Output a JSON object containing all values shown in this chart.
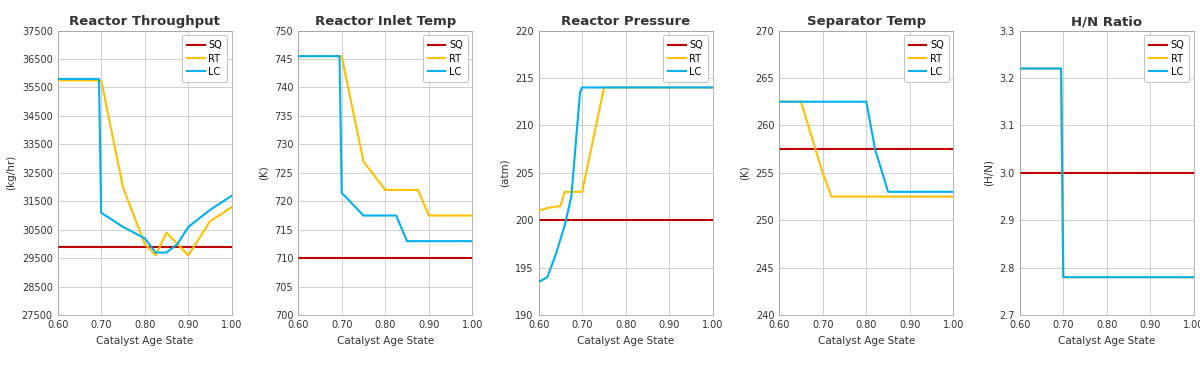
{
  "panels": [
    {
      "title": "Reactor Throughput",
      "ylabel": "(kg/hr)",
      "xlabel": "Catalyst Age State",
      "ylim": [
        27500,
        37500
      ],
      "yticks": [
        27500,
        28500,
        29500,
        30500,
        31500,
        32500,
        33500,
        34500,
        35500,
        36500,
        37500
      ],
      "xlim": [
        0.6,
        1.0
      ],
      "xticks": [
        0.6,
        0.7,
        0.8,
        0.9,
        1.0
      ],
      "SQ": {
        "x": [
          0.6,
          1.0
        ],
        "y": [
          29900,
          29900
        ]
      },
      "RT": {
        "x": [
          0.6,
          0.65,
          0.7,
          0.75,
          0.8,
          0.825,
          0.85,
          0.875,
          0.9,
          0.95,
          1.0
        ],
        "y": [
          35750,
          35750,
          35750,
          32000,
          30000,
          29600,
          30400,
          30000,
          29600,
          30800,
          31300
        ]
      },
      "LC": {
        "x": [
          0.6,
          0.65,
          0.695,
          0.7,
          0.75,
          0.8,
          0.825,
          0.85,
          0.875,
          0.9,
          0.95,
          1.0
        ],
        "y": [
          35800,
          35800,
          35800,
          31100,
          30600,
          30200,
          29700,
          29700,
          30000,
          30600,
          31200,
          31700
        ]
      }
    },
    {
      "title": "Reactor Inlet Temp",
      "ylabel": "(K)",
      "xlabel": "Catalyst Age State",
      "ylim": [
        700,
        750
      ],
      "yticks": [
        700,
        705,
        710,
        715,
        720,
        725,
        730,
        735,
        740,
        745,
        750
      ],
      "xlim": [
        0.6,
        1.0
      ],
      "xticks": [
        0.6,
        0.7,
        0.8,
        0.9,
        1.0
      ],
      "SQ": {
        "x": [
          0.6,
          1.0
        ],
        "y": [
          710,
          710
        ]
      },
      "RT": {
        "x": [
          0.6,
          0.65,
          0.7,
          0.75,
          0.8,
          0.825,
          0.85,
          0.875,
          0.9,
          0.95,
          1.0
        ],
        "y": [
          745.5,
          745.5,
          745.5,
          727,
          722,
          722,
          722,
          722,
          717.5,
          717.5,
          717.5
        ]
      },
      "LC": {
        "x": [
          0.6,
          0.65,
          0.695,
          0.7,
          0.75,
          0.8,
          0.825,
          0.85,
          0.875,
          0.9,
          0.95,
          1.0
        ],
        "y": [
          745.5,
          745.5,
          745.5,
          721.5,
          717.5,
          717.5,
          717.5,
          713,
          713,
          713,
          713,
          713
        ]
      }
    },
    {
      "title": "Reactor Pressure",
      "ylabel": "(atm)",
      "xlabel": "Catalyst Age State",
      "ylim": [
        190,
        220
      ],
      "yticks": [
        190,
        195,
        200,
        205,
        210,
        215,
        220
      ],
      "xlim": [
        0.6,
        1.0
      ],
      "xticks": [
        0.6,
        0.7,
        0.8,
        0.9,
        1.0
      ],
      "SQ": {
        "x": [
          0.6,
          1.0
        ],
        "y": [
          200,
          200
        ]
      },
      "RT": {
        "x": [
          0.6,
          0.62,
          0.65,
          0.66,
          0.7,
          0.75,
          0.8,
          0.9,
          1.0
        ],
        "y": [
          201,
          201.3,
          201.5,
          203.0,
          203.0,
          214.0,
          214.0,
          214.0,
          214.0
        ]
      },
      "LC": {
        "x": [
          0.6,
          0.62,
          0.64,
          0.66,
          0.675,
          0.685,
          0.695,
          0.7,
          0.75,
          0.8,
          0.9,
          1.0
        ],
        "y": [
          193.5,
          194.0,
          196.5,
          199.5,
          202.5,
          208.0,
          213.5,
          214.0,
          214.0,
          214.0,
          214.0,
          214.0
        ]
      }
    },
    {
      "title": "Separator Temp",
      "ylabel": "(K)",
      "xlabel": "Catalyst Age State",
      "ylim": [
        240,
        270
      ],
      "yticks": [
        240,
        245,
        250,
        255,
        260,
        265,
        270
      ],
      "xlim": [
        0.6,
        1.0
      ],
      "xticks": [
        0.6,
        0.7,
        0.8,
        0.9,
        1.0
      ],
      "SQ": {
        "x": [
          0.6,
          1.0
        ],
        "y": [
          257.5,
          257.5
        ]
      },
      "RT": {
        "x": [
          0.6,
          0.65,
          0.7,
          0.72,
          0.75,
          0.8,
          0.9,
          1.0
        ],
        "y": [
          262.5,
          262.5,
          255.0,
          252.5,
          252.5,
          252.5,
          252.5,
          252.5
        ]
      },
      "LC": {
        "x": [
          0.6,
          0.65,
          0.7,
          0.8,
          0.82,
          0.85,
          0.875,
          0.9,
          1.0
        ],
        "y": [
          262.5,
          262.5,
          262.5,
          262.5,
          257.5,
          253.0,
          253.0,
          253.0,
          253.0
        ]
      }
    },
    {
      "title": "H/N Ratio",
      "ylabel": "(H/N)",
      "xlabel": "Catalyst Age State",
      "ylim": [
        2.7,
        3.3
      ],
      "yticks": [
        2.7,
        2.8,
        2.9,
        3.0,
        3.1,
        3.2,
        3.3
      ],
      "xlim": [
        0.6,
        1.0
      ],
      "xticks": [
        0.6,
        0.7,
        0.8,
        0.9,
        1.0
      ],
      "SQ": {
        "x": [
          0.6,
          1.0
        ],
        "y": [
          3.0,
          3.0
        ]
      },
      "RT": {
        "x": [
          0.6,
          0.65,
          0.695,
          0.7,
          0.75,
          1.0
        ],
        "y": [
          3.22,
          3.22,
          3.22,
          2.78,
          2.78,
          2.78
        ]
      },
      "LC": {
        "x": [
          0.6,
          0.65,
          0.695,
          0.7,
          0.75,
          1.0
        ],
        "y": [
          3.22,
          3.22,
          3.22,
          2.78,
          2.78,
          2.78
        ]
      }
    }
  ],
  "colors": {
    "SQ": "#c00000",
    "RT": "#ffc000",
    "LC": "#00b0f0"
  },
  "bg_color": "#ffffff",
  "plot_bg_color": "#ffffff",
  "grid_color": "#c8c8c8",
  "title_fontsize": 9.5,
  "label_fontsize": 7.5,
  "tick_fontsize": 7.0,
  "legend_fontsize": 7.0,
  "linewidth": 1.5
}
